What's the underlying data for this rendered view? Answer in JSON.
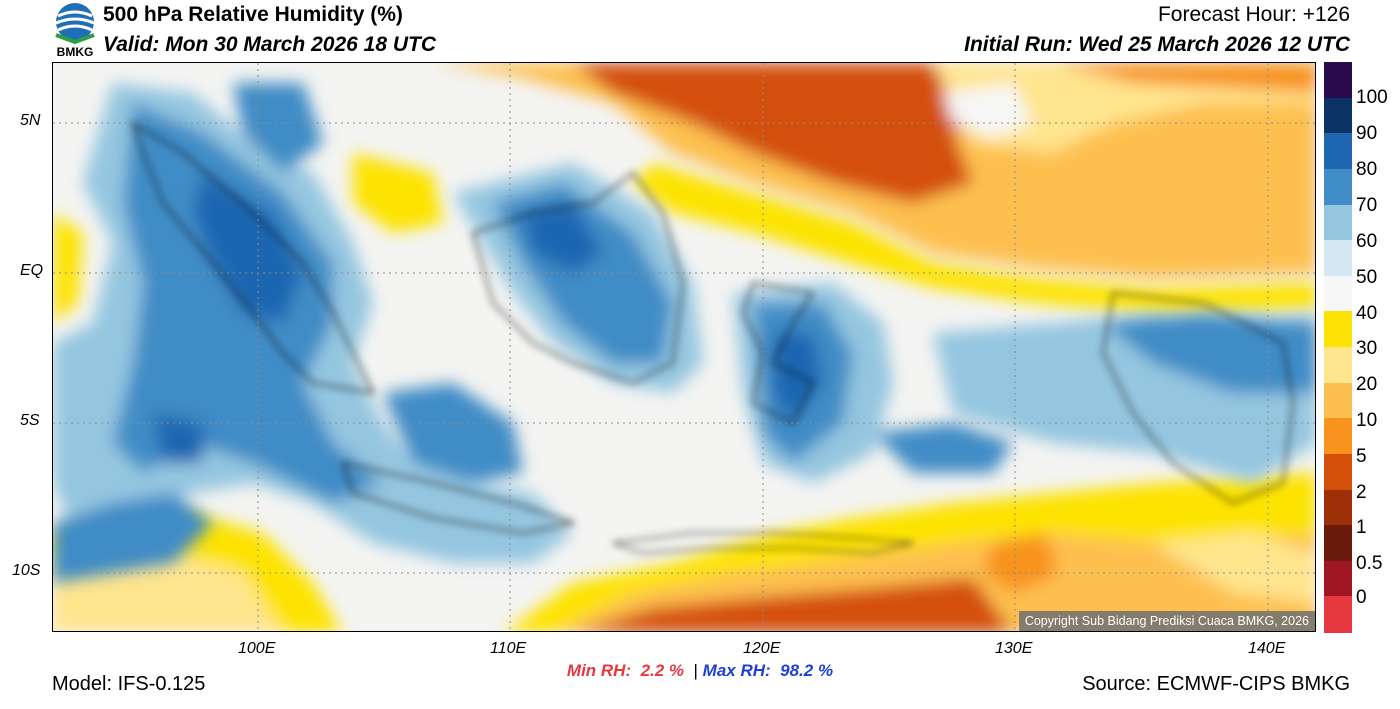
{
  "header": {
    "title": "500 hPa Relative Humidity (%)",
    "valid": "Valid: Mon 30 March 2026 18 UTC",
    "forecast_hour": "Forecast Hour: +126",
    "initial_run": "Initial Run: Wed 25 March 2026 12 UTC",
    "logo_text": "BMKG"
  },
  "map": {
    "lat_labels": [
      "5N",
      "EQ",
      "5S",
      "10S"
    ],
    "lon_labels": [
      "100E",
      "110E",
      "120E",
      "130E",
      "140E"
    ],
    "copyright": "Copyright Sub Bidang Prediksi Cuaca BMKG, 2026"
  },
  "colorbar": {
    "labels": [
      "100",
      "90",
      "80",
      "70",
      "60",
      "50",
      "40",
      "30",
      "20",
      "10",
      "5",
      "2",
      "1",
      "0.5",
      "0"
    ],
    "colors": [
      "#2a0b4e",
      "#0b3366",
      "#1f66b1",
      "#3f8cc6",
      "#94c6e0",
      "#d3e8f2",
      "#f7f7f7",
      "#fde304",
      "#ffe58e",
      "#fdc050",
      "#f8931e",
      "#d4500a",
      "#9e3008",
      "#6a1a0b",
      "#a01622",
      "#e5393f"
    ]
  },
  "stats": {
    "min_label": "Min RH:",
    "min_value": "2.2 %",
    "separator": "|",
    "max_label": "Max RH:",
    "max_value": "98.2 %"
  },
  "footer": {
    "model": "Model: IFS-0.125",
    "source": "Source: ECMWF-CIPS BMKG"
  }
}
